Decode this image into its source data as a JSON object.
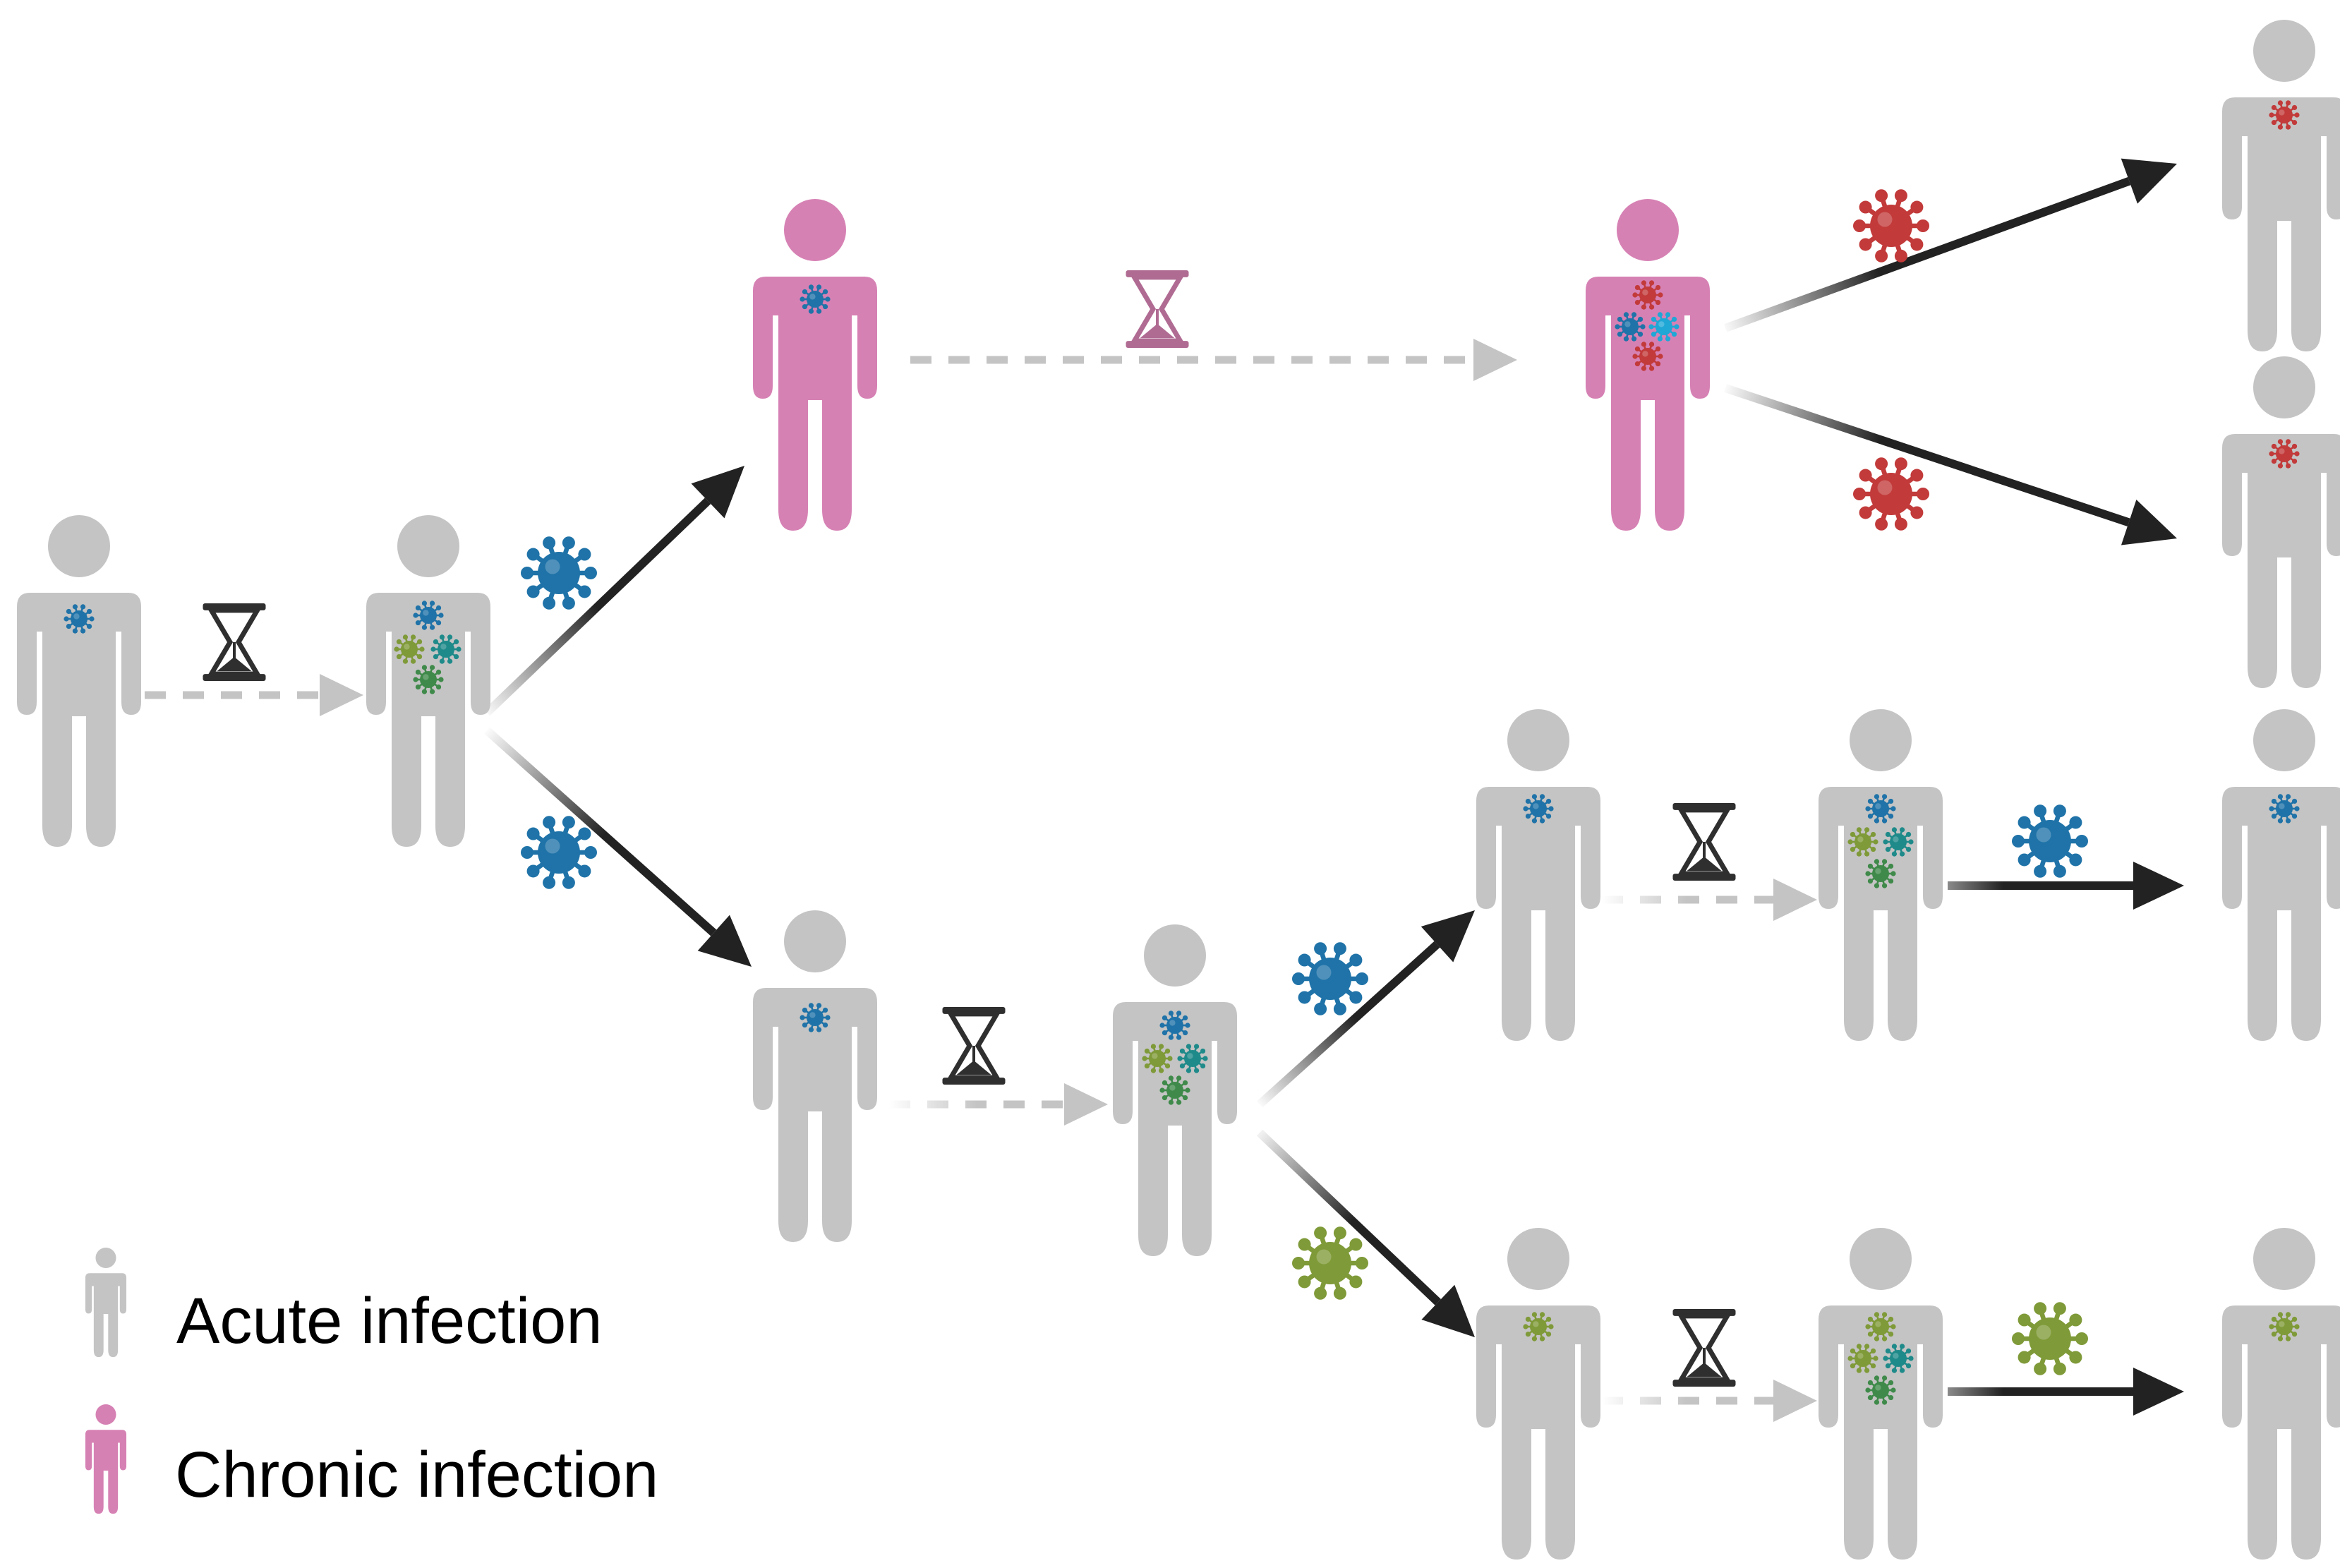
{
  "legend": {
    "acute_label": "Acute infection",
    "chronic_label": "Chronic infection"
  },
  "colors": {
    "acute": "#c4c4c4",
    "chronic": "#d681b4",
    "arrow": "#222222",
    "dashed": "#c4c4c4",
    "hourglass_dark": "#2f2f2f",
    "hourglass_pink": "#b06b93",
    "virus_blue": "#1f73a8",
    "virus_teal": "#1f8a8a",
    "virus_olive": "#7f9a38",
    "virus_green": "#3f8a4a",
    "virus_red": "#c23a3a",
    "virus_cyan": "#1fa7d6"
  },
  "icons": [
    "person-icon",
    "virus-icon",
    "hourglass-icon",
    "arrow-icon"
  ]
}
